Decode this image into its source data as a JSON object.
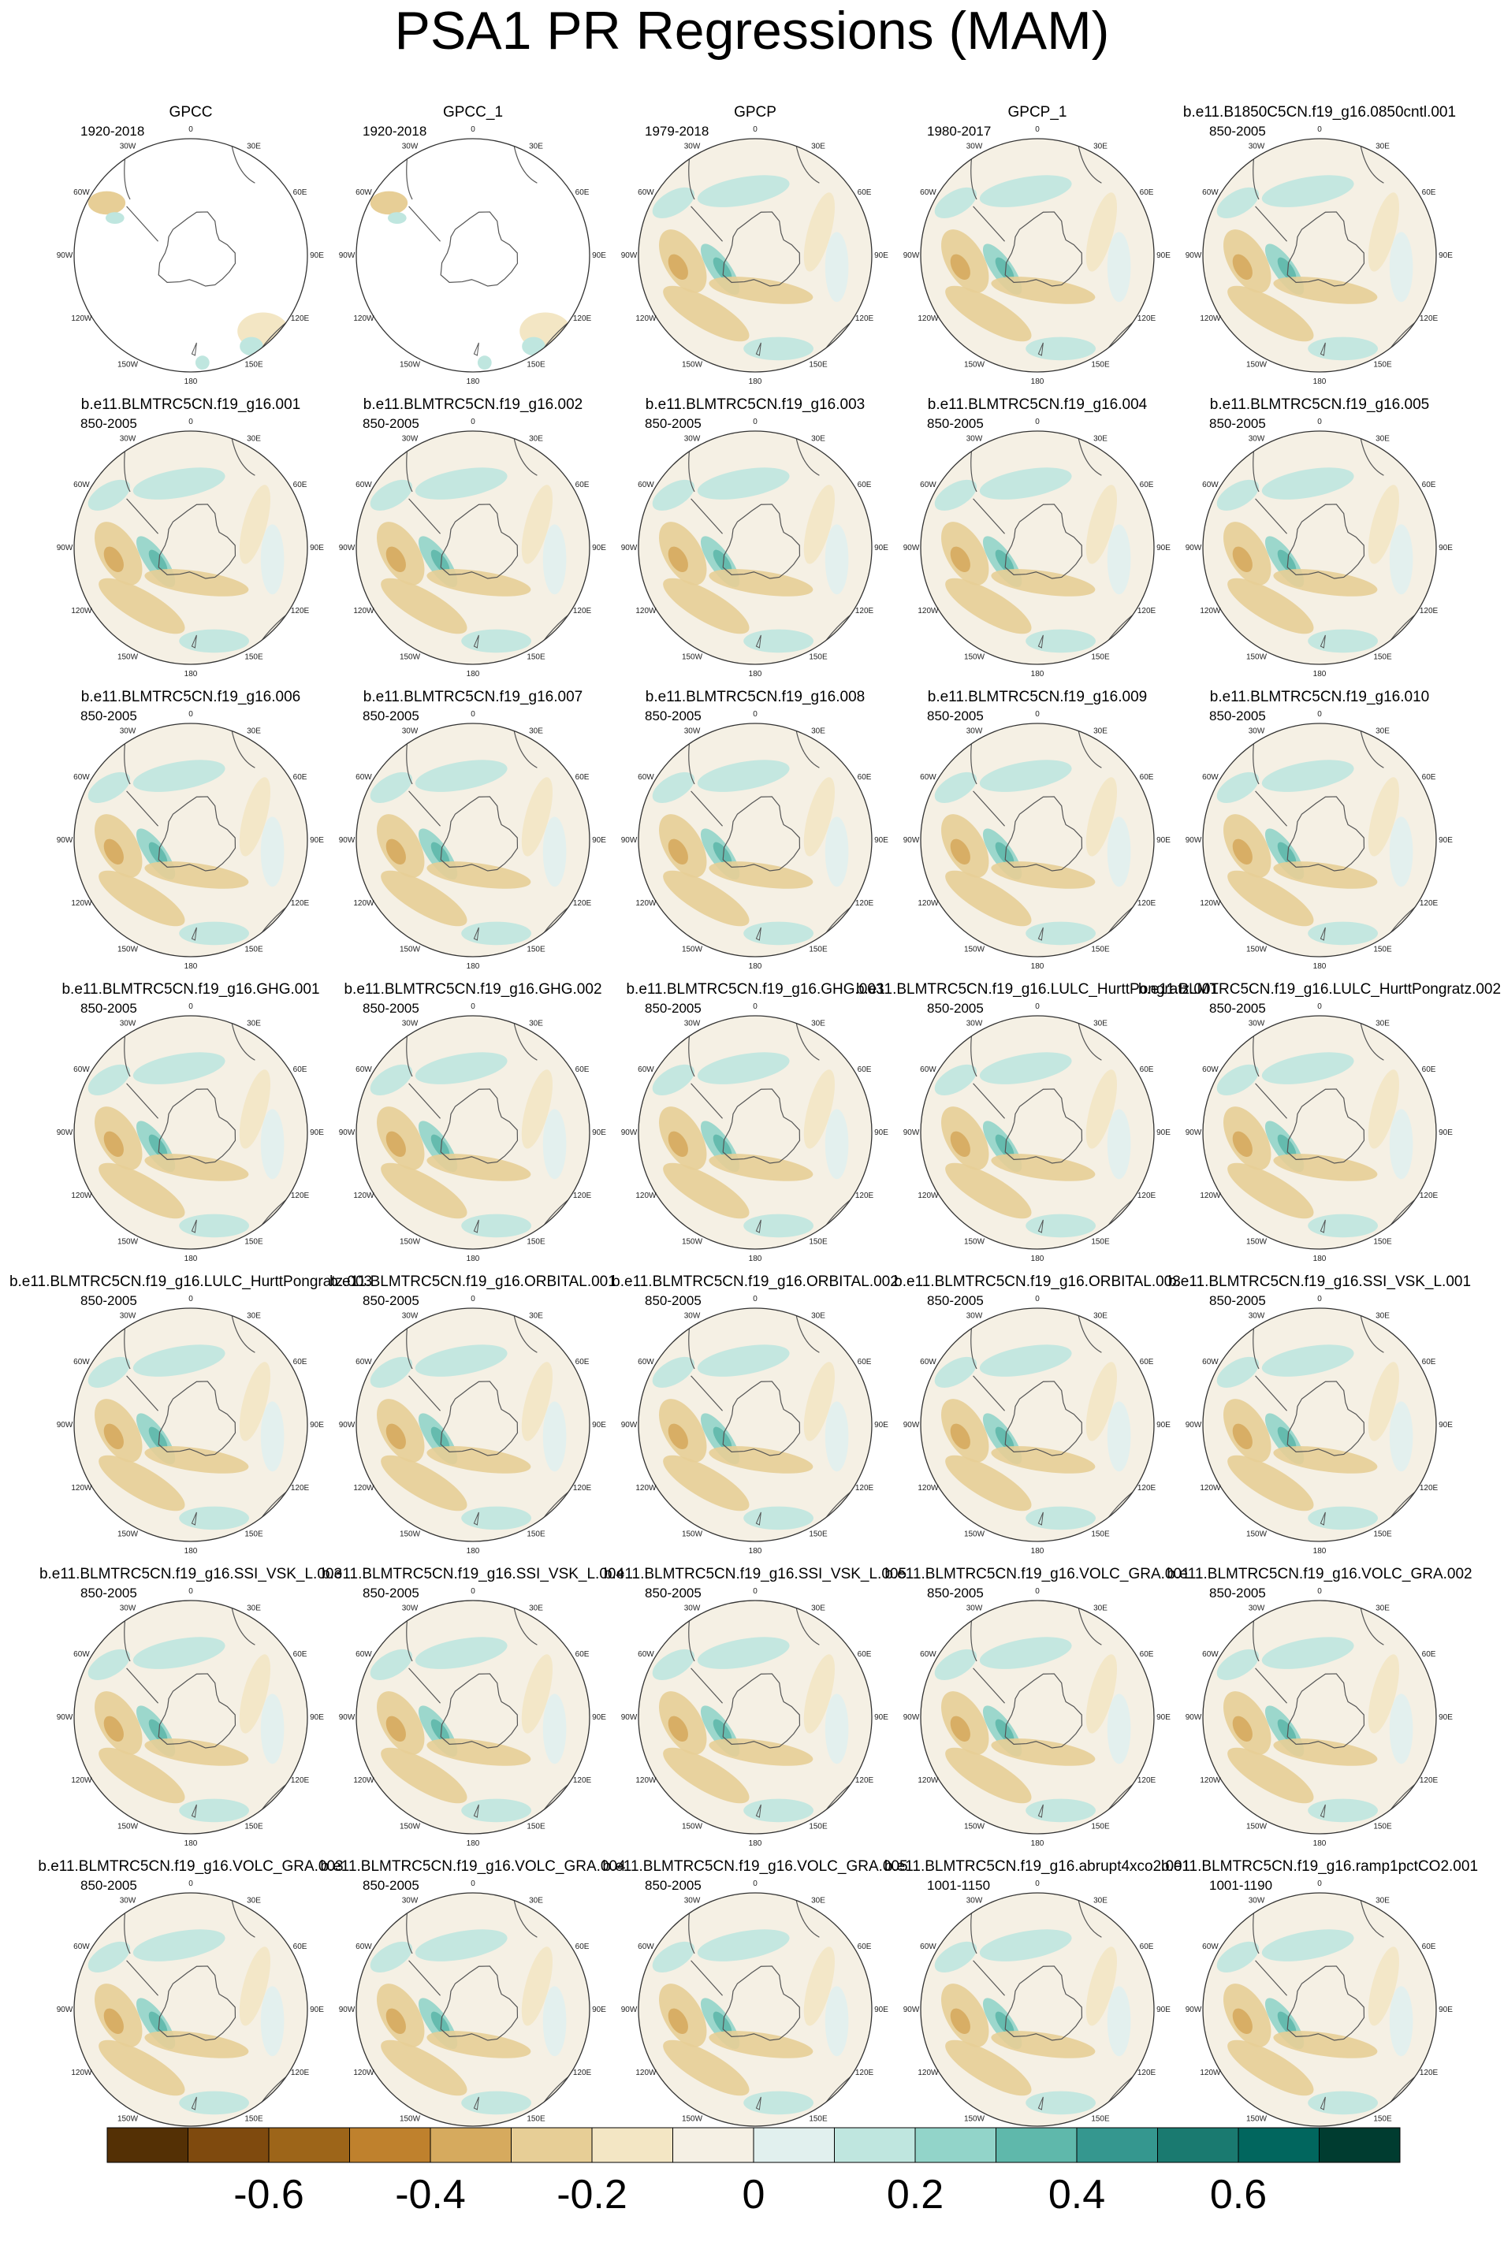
{
  "figure": {
    "title": "PSA1 PR Regressions (MAM)"
  },
  "longitude_labels": [
    "0",
    "30E",
    "60E",
    "90E",
    "120E",
    "150E",
    "180",
    "150W",
    "120W",
    "90W",
    "60W",
    "30W"
  ],
  "panels": [
    {
      "name": "GPCC",
      "period": "1920-2018",
      "coverage": "partial"
    },
    {
      "name": "GPCC_1",
      "period": "1920-2018",
      "coverage": "partial"
    },
    {
      "name": "GPCP",
      "period": "1979-2018",
      "coverage": "full"
    },
    {
      "name": "GPCP_1",
      "period": "1980-2017",
      "coverage": "full"
    },
    {
      "name": "b.e11.B1850C5CN.f19_g16.0850cntl.001",
      "period": "850-2005",
      "coverage": "full"
    },
    {
      "name": "b.e11.BLMTRC5CN.f19_g16.001",
      "period": "850-2005",
      "coverage": "full"
    },
    {
      "name": "b.e11.BLMTRC5CN.f19_g16.002",
      "period": "850-2005",
      "coverage": "full"
    },
    {
      "name": "b.e11.BLMTRC5CN.f19_g16.003",
      "period": "850-2005",
      "coverage": "full"
    },
    {
      "name": "b.e11.BLMTRC5CN.f19_g16.004",
      "period": "850-2005",
      "coverage": "full"
    },
    {
      "name": "b.e11.BLMTRC5CN.f19_g16.005",
      "period": "850-2005",
      "coverage": "full"
    },
    {
      "name": "b.e11.BLMTRC5CN.f19_g16.006",
      "period": "850-2005",
      "coverage": "full"
    },
    {
      "name": "b.e11.BLMTRC5CN.f19_g16.007",
      "period": "850-2005",
      "coverage": "full"
    },
    {
      "name": "b.e11.BLMTRC5CN.f19_g16.008",
      "period": "850-2005",
      "coverage": "full"
    },
    {
      "name": "b.e11.BLMTRC5CN.f19_g16.009",
      "period": "850-2005",
      "coverage": "full"
    },
    {
      "name": "b.e11.BLMTRC5CN.f19_g16.010",
      "period": "850-2005",
      "coverage": "full"
    },
    {
      "name": "b.e11.BLMTRC5CN.f19_g16.GHG.001",
      "period": "850-2005",
      "coverage": "full"
    },
    {
      "name": "b.e11.BLMTRC5CN.f19_g16.GHG.002",
      "period": "850-2005",
      "coverage": "full"
    },
    {
      "name": "b.e11.BLMTRC5CN.f19_g16.GHG.003",
      "period": "850-2005",
      "coverage": "full"
    },
    {
      "name": "b.e11.BLMTRC5CN.f19_g16.LULC_HurttPongratz.001",
      "period": "850-2005",
      "coverage": "full"
    },
    {
      "name": "b.e11.BLMTRC5CN.f19_g16.LULC_HurttPongratz.002",
      "period": "850-2005",
      "coverage": "full"
    },
    {
      "name": "b.e11.BLMTRC5CN.f19_g16.LULC_HurttPongratz.003",
      "period": "850-2005",
      "coverage": "full"
    },
    {
      "name": "b.e11.BLMTRC5CN.f19_g16.ORBITAL.001",
      "period": "850-2005",
      "coverage": "full"
    },
    {
      "name": "b.e11.BLMTRC5CN.f19_g16.ORBITAL.002",
      "period": "850-2005",
      "coverage": "full"
    },
    {
      "name": "b.e11.BLMTRC5CN.f19_g16.ORBITAL.003",
      "period": "850-2005",
      "coverage": "full"
    },
    {
      "name": "b.e11.BLMTRC5CN.f19_g16.SSI_VSK_L.001",
      "period": "850-2005",
      "coverage": "full"
    },
    {
      "name": "b.e11.BLMTRC5CN.f19_g16.SSI_VSK_L.003",
      "period": "850-2005",
      "coverage": "full"
    },
    {
      "name": "b.e11.BLMTRC5CN.f19_g16.SSI_VSK_L.004",
      "period": "850-2005",
      "coverage": "full"
    },
    {
      "name": "b.e11.BLMTRC5CN.f19_g16.SSI_VSK_L.005",
      "period": "850-2005",
      "coverage": "full"
    },
    {
      "name": "b.e11.BLMTRC5CN.f19_g16.VOLC_GRA.001",
      "period": "850-2005",
      "coverage": "full"
    },
    {
      "name": "b.e11.BLMTRC5CN.f19_g16.VOLC_GRA.002",
      "period": "850-2005",
      "coverage": "full"
    },
    {
      "name": "b.e11.BLMTRC5CN.f19_g16.VOLC_GRA.003",
      "period": "850-2005",
      "coverage": "full"
    },
    {
      "name": "b.e11.BLMTRC5CN.f19_g16.VOLC_GRA.004",
      "period": "850-2005",
      "coverage": "full"
    },
    {
      "name": "b.e11.BLMTRC5CN.f19_g16.VOLC_GRA.005",
      "period": "850-2005",
      "coverage": "full"
    },
    {
      "name": "b.e11.BLMTRC5CN.f19_g16.abrupt4xco2.001",
      "period": "1001-1150",
      "coverage": "full"
    },
    {
      "name": "b.e11.BLMTRC5CN.f19_g16.ramp1pctCO2.001",
      "period": "1001-1190",
      "coverage": "full"
    }
  ],
  "colorbar": {
    "colors": [
      "#543005",
      "#7f4a0e",
      "#9d6519",
      "#bf812d",
      "#d6aa5e",
      "#e7ce96",
      "#f3e6c4",
      "#f5f0e4",
      "#e1f0ee",
      "#bfe6df",
      "#92d4c9",
      "#5fb8ab",
      "#35978f",
      "#1a7a70",
      "#01665e",
      "#003c30"
    ],
    "tick_labels": [
      "-0.6",
      "-0.4",
      "-0.2",
      "0",
      "0.2",
      "0.4",
      "0.6"
    ],
    "tick_values": [
      -0.6,
      -0.4,
      -0.2,
      0,
      0.2,
      0.4,
      0.6
    ],
    "range": [
      -0.8,
      0.8
    ]
  }
}
